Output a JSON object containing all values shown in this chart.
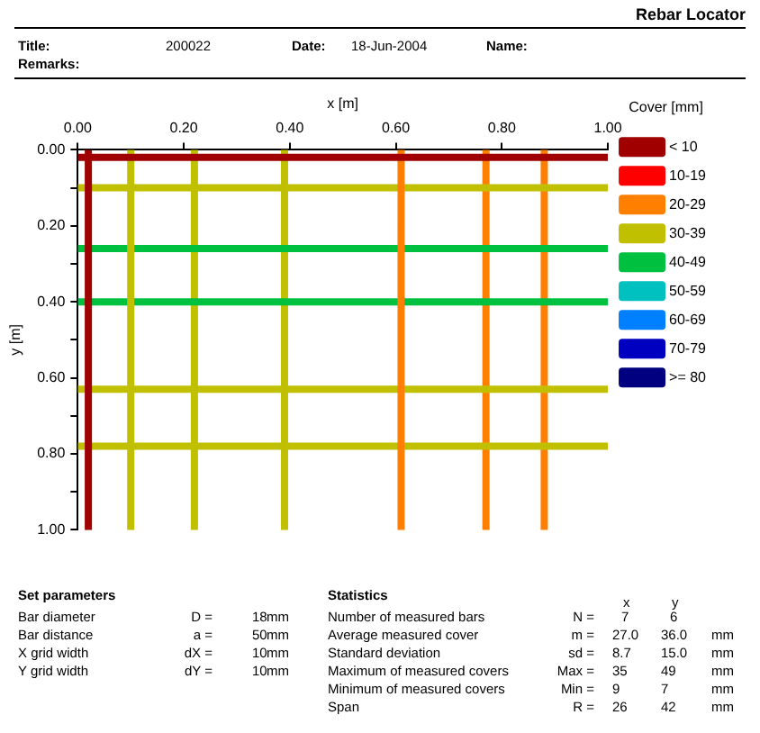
{
  "chart_data": {
    "type": "line",
    "title": "Rebar Locator",
    "xlabel": "x [m]",
    "ylabel": "y [m]",
    "legend_title": "Cover [mm]",
    "legend": "right",
    "marker": "none",
    "line_style": "solid",
    "grid": false,
    "xlim": [
      0,
      1
    ],
    "xticks": [
      {
        "value": 0,
        "label": "0.00"
      },
      {
        "value": 0.2,
        "label": "0.20"
      },
      {
        "value": 0.4,
        "label": "0.40"
      },
      {
        "value": 0.6,
        "label": "0.60"
      },
      {
        "value": 0.8,
        "label": "0.80"
      },
      {
        "value": 1,
        "label": "1.00"
      }
    ],
    "ylim": [
      1,
      0
    ],
    "yticks": [
      {
        "value": 0,
        "label": "0.00"
      },
      {
        "value": 0.1,
        "label": null
      },
      {
        "value": 0.2,
        "label": "0.20"
      },
      {
        "value": 0.3,
        "label": null
      },
      {
        "value": 0.4,
        "label": "0.40"
      },
      {
        "value": 0.5,
        "label": null
      },
      {
        "value": 0.6,
        "label": "0.60"
      },
      {
        "value": 0.7,
        "label": null
      },
      {
        "value": 0.8,
        "label": "0.80"
      },
      {
        "value": 0.9,
        "label": null
      },
      {
        "value": 1,
        "label": "1.00"
      }
    ],
    "series": [
      {
        "name": "< 10",
        "color": "#a00000",
        "x": [
          0.02,
          0.02
        ],
        "values": [
          0,
          1
        ]
      },
      {
        "color": "#a00000",
        "x": [
          0,
          1
        ],
        "values": [
          0.02,
          0.02
        ]
      },
      {
        "name": "10-19",
        "color": "#ff0000"
      },
      {
        "name": "20-29",
        "color": "#ff8000",
        "x": [
          0.61,
          0.61
        ],
        "values": [
          0,
          1
        ]
      },
      {
        "name": "30-39",
        "color": "#c0c000",
        "x": [
          0.1,
          0.1
        ],
        "values": [
          0,
          1
        ]
      },
      {
        "name": "40-49",
        "color": "#00c040",
        "x": [
          0,
          1
        ],
        "values": [
          0.26,
          0.26
        ]
      },
      {
        "name": "50-59",
        "color": "#00c0c0"
      },
      {
        "name": "60-69",
        "color": "#0080ff"
      },
      {
        "name": "70-79",
        "color": "#0000c0"
      },
      {
        "name": ">= 80",
        "color": "#000080"
      },
      {
        "color": "#00c040",
        "x": [
          0,
          1
        ],
        "values": [
          0.4,
          0.4
        ]
      },
      {
        "color": "#c0c000",
        "x": [
          0,
          1
        ],
        "values": [
          0.1,
          0.1
        ]
      },
      {
        "color": "#c0c000",
        "x": [
          0,
          1
        ],
        "values": [
          0.63,
          0.63
        ]
      },
      {
        "color": "#c0c000",
        "x": [
          0,
          1
        ],
        "values": [
          0.78,
          0.78
        ]
      },
      {
        "color": "#c0c000",
        "x": [
          0.22,
          0.22
        ],
        "values": [
          0,
          1
        ]
      },
      {
        "color": "#c0c000",
        "x": [
          0.39,
          0.39
        ],
        "values": [
          0,
          1
        ]
      },
      {
        "color": "#ff8000",
        "x": [
          0.77,
          0.77
        ],
        "values": [
          0,
          1
        ]
      },
      {
        "color": "#ff8000",
        "x": [
          0.88,
          0.88
        ],
        "values": [
          0,
          1
        ]
      }
    ],
    "annotations": [
      "Title:",
      "200022",
      "Date:",
      "18-Jun-2004",
      "Name:",
      "Remarks:",
      "Set parameters",
      "Bar diameter",
      "D =",
      "18",
      "mm",
      "Bar distance",
      "a =",
      "50",
      "mm",
      "X grid width",
      "dX =",
      "10",
      "mm",
      "Y grid width",
      "dY =",
      "10",
      "mm",
      "Statistics",
      "x",
      "y",
      "Number of measured bars",
      "N =",
      "7",
      "6",
      "Average measured cover",
      "m =",
      "27.0",
      "36.0",
      "mm",
      "Standard deviation",
      "sd =",
      "8.7",
      "15.0",
      "mm",
      "Maximum of measured covers",
      "Max =",
      "35",
      "49",
      "mm",
      "Minimum of measured covers",
      "Min =",
      "9",
      "7",
      "mm",
      "Span",
      "R =",
      "26",
      "42",
      "mm"
    ]
  }
}
